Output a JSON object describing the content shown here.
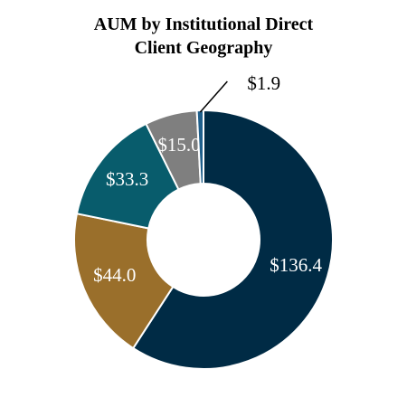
{
  "chart_data": {
    "type": "donut",
    "title": "AUM by Institutional Direct Client Geography",
    "categories": [
      null,
      null,
      null,
      null,
      null
    ],
    "values": [
      136.4,
      44.0,
      33.3,
      15.0,
      1.9
    ],
    "value_labels": [
      "$136.4",
      "$44.0",
      "$33.3",
      "$15.0",
      "$1.9"
    ],
    "colors": [
      "#002b45",
      "#9a6f2b",
      "#085c6c",
      "#7f7f7f",
      "#1f5f8b"
    ]
  }
}
